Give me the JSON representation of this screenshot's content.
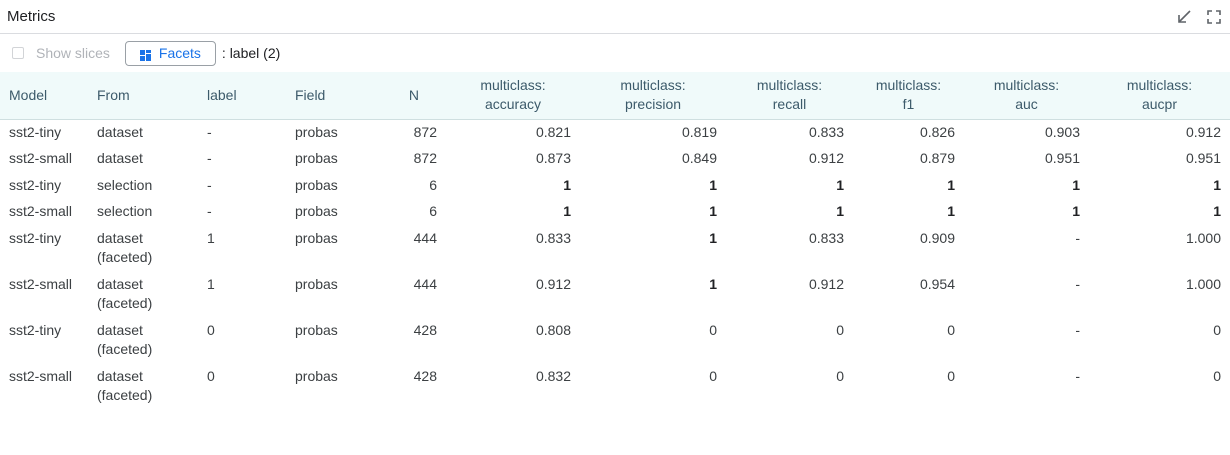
{
  "panel": {
    "title": "Metrics"
  },
  "toolbar": {
    "show_slices_label": "Show slices",
    "facets_button_label": "Facets",
    "facet_label": ": label (2)"
  },
  "table": {
    "headers": [
      [
        "Model"
      ],
      [
        "From"
      ],
      [
        "label"
      ],
      [
        "Field"
      ],
      [
        "N"
      ],
      [
        "multiclass:",
        "accuracy"
      ],
      [
        "multiclass:",
        "precision"
      ],
      [
        "multiclass:",
        "recall"
      ],
      [
        "multiclass:",
        "f1"
      ],
      [
        "multiclass:",
        "auc"
      ],
      [
        "multiclass:",
        "aucpr"
      ]
    ],
    "rows": [
      [
        "sst2-tiny",
        "dataset",
        "-",
        "probas",
        "872",
        "0.821",
        "0.819",
        "0.833",
        "0.826",
        "0.903",
        "0.912"
      ],
      [
        "sst2-small",
        "dataset",
        "-",
        "probas",
        "872",
        "0.873",
        "0.849",
        "0.912",
        "0.879",
        "0.951",
        "0.951"
      ],
      [
        "sst2-tiny",
        "selection",
        "-",
        "probas",
        "6",
        "1",
        "1",
        "1",
        "1",
        "1",
        "1"
      ],
      [
        "sst2-small",
        "selection",
        "-",
        "probas",
        "6",
        "1",
        "1",
        "1",
        "1",
        "1",
        "1"
      ],
      [
        "sst2-tiny",
        "dataset\n(faceted)",
        "1",
        "probas",
        "444",
        "0.833",
        "1",
        "0.833",
        "0.909",
        "-",
        "1.000"
      ],
      [
        "sst2-small",
        "dataset\n(faceted)",
        "1",
        "probas",
        "444",
        "0.912",
        "1",
        "0.912",
        "0.954",
        "-",
        "1.000"
      ],
      [
        "sst2-tiny",
        "dataset\n(faceted)",
        "0",
        "probas",
        "428",
        "0.808",
        "0",
        "0",
        "0",
        "-",
        "0"
      ],
      [
        "sst2-small",
        "dataset\n(faceted)",
        "0",
        "probas",
        "428",
        "0.832",
        "0",
        "0",
        "0",
        "-",
        "0"
      ]
    ],
    "bold_cells": [
      [
        2,
        5
      ],
      [
        2,
        6
      ],
      [
        2,
        7
      ],
      [
        2,
        8
      ],
      [
        2,
        9
      ],
      [
        2,
        10
      ],
      [
        3,
        5
      ],
      [
        3,
        6
      ],
      [
        3,
        7
      ],
      [
        3,
        8
      ],
      [
        3,
        9
      ],
      [
        3,
        10
      ],
      [
        4,
        6
      ],
      [
        5,
        6
      ]
    ]
  },
  "icons": {
    "minimize": "minimize-arrow-icon",
    "fullscreen": "fullscreen-icon",
    "facets": "grid-icon"
  },
  "colors": {
    "accent": "#1a73e8",
    "header_bg": "#f0fafa",
    "header_text": "#3c5a6a"
  }
}
